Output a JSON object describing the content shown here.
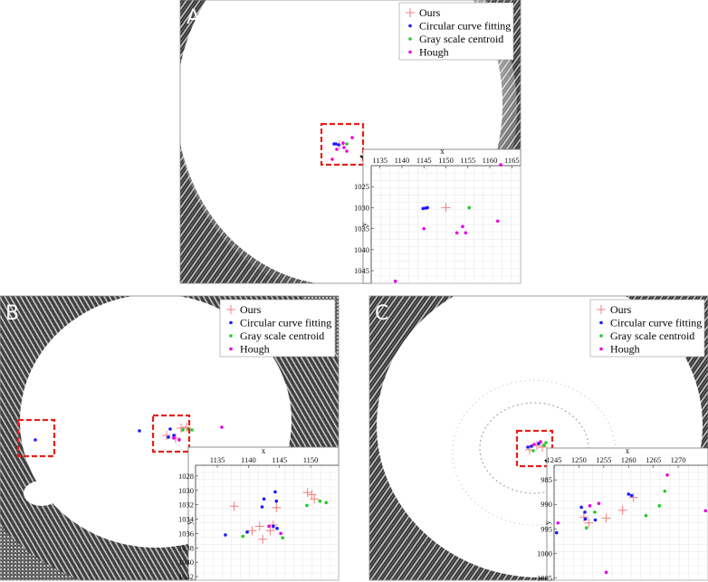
{
  "legend_labels": [
    "Ours",
    "Circular curve fitting",
    "Gray scale centroid",
    "Hough"
  ],
  "colors": {
    "ours": "#f08080",
    "circular": "#1a1aff",
    "gray": "#22cc22",
    "hough": "#e600e6",
    "box": "#e8201a"
  },
  "chart_data": [
    {
      "panel": "A",
      "type": "scatter",
      "xlabel": "x",
      "ylabel": "y",
      "xlim": [
        1133,
        1167
      ],
      "ylim": [
        1048,
        1020
      ],
      "xticks": [
        1135,
        1140,
        1145,
        1150,
        1155,
        1160,
        1165
      ],
      "yticks": [
        1025,
        1030,
        1035,
        1040,
        1045
      ],
      "series": [
        {
          "name": "Ours",
          "points": [
            [
              1150,
              1030
            ]
          ]
        },
        {
          "name": "Circular curve fitting",
          "points": [
            [
              1144.8,
              1030.2
            ],
            [
              1145.4,
              1030.1
            ],
            [
              1145.8,
              1030
            ]
          ]
        },
        {
          "name": "Gray scale centroid",
          "points": [
            [
              1155.3,
              1030
            ]
          ]
        },
        {
          "name": "Hough",
          "points": [
            [
              1145,
              1035
            ],
            [
              1153.8,
              1034.5
            ],
            [
              1152.5,
              1036
            ],
            [
              1154.5,
              1036
            ],
            [
              1161.8,
              1033.2
            ],
            [
              1162.5,
              1019.8
            ],
            [
              1138.5,
              1047.5
            ]
          ]
        }
      ]
    },
    {
      "panel": "B",
      "type": "scatter",
      "xlabel": "x",
      "ylabel": "y",
      "xlim": [
        1131.5,
        1154.5
      ],
      "ylim": [
        1042.5,
        1026.5
      ],
      "xticks": [
        1135,
        1140,
        1145,
        1150
      ],
      "yticks": [
        1028,
        1030,
        1032,
        1034,
        1036,
        1038,
        1040,
        1042
      ],
      "series": [
        {
          "name": "Ours",
          "points": [
            [
              1149.5,
              1030.3
            ],
            [
              1150.2,
              1030.6
            ],
            [
              1150.6,
              1031.2
            ],
            [
              1137.7,
              1032.2
            ],
            [
              1144.5,
              1032.4
            ],
            [
              1141.8,
              1035
            ],
            [
              1144,
              1034.8
            ],
            [
              1140.6,
              1035.6
            ],
            [
              1143.5,
              1035.6
            ],
            [
              1142.3,
              1036.8
            ]
          ]
        },
        {
          "name": "Circular curve fitting",
          "points": [
            [
              1142.5,
              1031.2
            ],
            [
              1142.2,
              1032.3
            ],
            [
              1144.3,
              1030.2
            ],
            [
              1144.5,
              1031.5
            ],
            [
              1144,
              1035
            ],
            [
              1139.8,
              1035.8
            ],
            [
              1144.6,
              1035.3
            ],
            [
              1136.3,
              1036.2
            ]
          ]
        },
        {
          "name": "Gray scale centroid",
          "points": [
            [
              1139.1,
              1036.4
            ],
            [
              1145.5,
              1036.6
            ],
            [
              1149.4,
              1032.1
            ],
            [
              1151.5,
              1031.5
            ],
            [
              1152.5,
              1031.7
            ]
          ]
        },
        {
          "name": "Hough",
          "points": [
            [
              1143.3,
              1035
            ],
            [
              1145.2,
              1036
            ]
          ]
        }
      ]
    },
    {
      "panel": "C",
      "type": "scatter",
      "xlabel": "x",
      "ylabel": "y",
      "xlim": [
        1245,
        1276
      ],
      "ylim": [
        1005.5,
        982
      ],
      "xticks": [
        1245,
        1250,
        1255,
        1260,
        1265,
        1270
      ],
      "yticks": [
        985,
        990,
        995,
        1000,
        1005
      ],
      "series": [
        {
          "name": "Ours",
          "points": [
            [
              1251,
              992.6
            ],
            [
              1252,
              993.8
            ],
            [
              1255.5,
              992.8
            ],
            [
              1258.8,
              991.2
            ],
            [
              1261,
              988.6
            ]
          ]
        },
        {
          "name": "Circular curve fitting",
          "points": [
            [
              1245.5,
              995.8
            ],
            [
              1250.5,
              990.6
            ],
            [
              1251.2,
              991.6
            ],
            [
              1251.3,
              993
            ],
            [
              1253.3,
              993.2
            ],
            [
              1260,
              987.9
            ],
            [
              1260.6,
              988.2
            ]
          ]
        },
        {
          "name": "Gray scale centroid",
          "points": [
            [
              1251.5,
              994.8
            ],
            [
              1253.2,
              991.6
            ],
            [
              1263.5,
              992.3
            ],
            [
              1266.2,
              990.3
            ],
            [
              1267.3,
              987.3
            ]
          ]
        },
        {
          "name": "Hough",
          "points": [
            [
              1245.8,
              993.8
            ],
            [
              1252.2,
              990.3
            ],
            [
              1254,
              989.8
            ],
            [
              1255.5,
              1003.9
            ],
            [
              1267.8,
              984
            ],
            [
              1275.5,
              991.3
            ]
          ]
        }
      ]
    }
  ]
}
